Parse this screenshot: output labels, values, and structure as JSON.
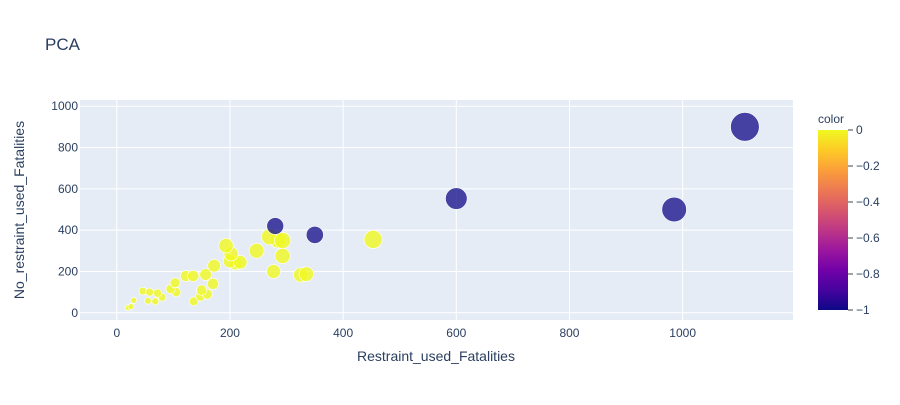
{
  "chart_data": {
    "type": "scatter",
    "title": "PCA",
    "xlabel": "Restraint_used_Fatalities",
    "ylabel": "No_restraint_used_Fatalities",
    "xlim": [
      -65,
      1195
    ],
    "ylim": [
      -35,
      1030
    ],
    "x_ticks": [
      0,
      200,
      400,
      600,
      800,
      1000
    ],
    "y_ticks": [
      0,
      200,
      400,
      600,
      800,
      1000
    ],
    "grid": true,
    "colorbar": {
      "title": "color",
      "range": [
        -1,
        0
      ],
      "ticks": [
        0,
        -0.2,
        -0.4,
        -0.6,
        -0.8,
        -1
      ],
      "tick_labels": [
        "0",
        "−0.2",
        "−0.4",
        "−0.6",
        "−0.8",
        "−1"
      ],
      "colorscale": [
        "#0d0887",
        "#46039f",
        "#7201a8",
        "#9c179e",
        "#bd3786",
        "#d8576b",
        "#ed7953",
        "#fb9f3a",
        "#fdca26",
        "#f0f921"
      ]
    },
    "points": [
      {
        "x": 1110,
        "y": 900,
        "color": -1
      },
      {
        "x": 985,
        "y": 500,
        "color": -1
      },
      {
        "x": 600,
        "y": 553,
        "color": -1
      },
      {
        "x": 350,
        "y": 377,
        "color": -1
      },
      {
        "x": 280,
        "y": 420,
        "color": -1
      },
      {
        "x": 453,
        "y": 355,
        "color": 0
      },
      {
        "x": 335,
        "y": 187,
        "color": 0
      },
      {
        "x": 325,
        "y": 183,
        "color": 0
      },
      {
        "x": 293,
        "y": 275,
        "color": 0
      },
      {
        "x": 293,
        "y": 350,
        "color": 0
      },
      {
        "x": 285,
        "y": 352,
        "color": 0
      },
      {
        "x": 270,
        "y": 368,
        "color": 0
      },
      {
        "x": 277,
        "y": 200,
        "color": 0
      },
      {
        "x": 247,
        "y": 300,
        "color": 0
      },
      {
        "x": 218,
        "y": 245,
        "color": 0
      },
      {
        "x": 210,
        "y": 240,
        "color": 0
      },
      {
        "x": 200,
        "y": 250,
        "color": 0
      },
      {
        "x": 202,
        "y": 285,
        "color": 0
      },
      {
        "x": 193,
        "y": 325,
        "color": 0
      },
      {
        "x": 172,
        "y": 228,
        "color": 0
      },
      {
        "x": 170,
        "y": 140,
        "color": 0
      },
      {
        "x": 157,
        "y": 185,
        "color": 0
      },
      {
        "x": 160,
        "y": 90,
        "color": 0
      },
      {
        "x": 150,
        "y": 110,
        "color": 0
      },
      {
        "x": 148,
        "y": 80,
        "color": 0
      },
      {
        "x": 136,
        "y": 55,
        "color": 0
      },
      {
        "x": 135,
        "y": 178,
        "color": 0
      },
      {
        "x": 122,
        "y": 178,
        "color": 0
      },
      {
        "x": 103,
        "y": 145,
        "color": 0
      },
      {
        "x": 105,
        "y": 100,
        "color": 0
      },
      {
        "x": 95,
        "y": 115,
        "color": 0
      },
      {
        "x": 80,
        "y": 75,
        "color": 0
      },
      {
        "x": 72,
        "y": 95,
        "color": 0
      },
      {
        "x": 68,
        "y": 55,
        "color": 0
      },
      {
        "x": 58,
        "y": 100,
        "color": 0
      },
      {
        "x": 55,
        "y": 58,
        "color": 0
      },
      {
        "x": 46,
        "y": 105,
        "color": 0
      },
      {
        "x": 30,
        "y": 60,
        "color": 0
      },
      {
        "x": 25,
        "y": 30,
        "color": 0
      },
      {
        "x": 20,
        "y": 25,
        "color": 0
      }
    ]
  }
}
